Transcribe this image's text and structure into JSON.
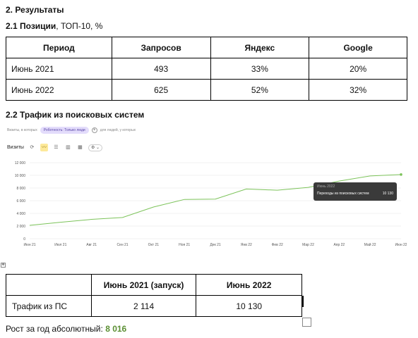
{
  "section_title": "2. Результаты",
  "positions": {
    "heading_bold": "2.1 Позиции",
    "heading_rest": ", ТОП-10, %",
    "headers": [
      "Период",
      "Запросов",
      "Яндекс",
      "Google"
    ],
    "rows": [
      [
        "Июнь 2021",
        "493",
        "33%",
        "20%"
      ],
      [
        "Июнь 2022",
        "625",
        "52%",
        "32%"
      ]
    ]
  },
  "traffic": {
    "heading": "2.2 Трафик из поисковых систем",
    "segment_label": "Визиты, в которых",
    "segment_chip": "Роботность: Только люди",
    "segment_add": "для людей, у которых",
    "metric_label": "Визиты",
    "tooltip": {
      "date": "Июнь 2022",
      "series": "Переходы из поисковых систем",
      "value": "10 130"
    },
    "colors": {
      "line": "#7cc35a",
      "tooltip_bg": "#3a3a3a",
      "chip": "#e3dcfb"
    }
  },
  "chart_data": {
    "type": "line",
    "x": [
      "Июн 21",
      "Июл 21",
      "Авг 21",
      "Сен 21",
      "Окт 21",
      "Ноя 21",
      "Дек 21",
      "Янв 22",
      "Фев 22",
      "Мар 22",
      "Апр 22",
      "Май 22",
      "Июн 22"
    ],
    "series": [
      {
        "values": [
          2114,
          2600,
          3050,
          3350,
          5000,
          6200,
          6250,
          7850,
          7650,
          8100,
          9100,
          9900,
          10130
        ]
      }
    ],
    "yticks": [
      "0",
      "2 000",
      "4 000",
      "6 000",
      "8 000",
      "10 000",
      "12 000"
    ],
    "ylim": [
      0,
      12000
    ],
    "grid": true,
    "title": "",
    "xlabel": "",
    "ylabel": ""
  },
  "summary_table": {
    "headers": [
      "",
      "Июнь 2021 (запуск)",
      "Июнь 2022"
    ],
    "row": [
      "Трафик из ПС",
      "2 114",
      "10 130"
    ]
  },
  "growth": {
    "label": "Рост за год абсолютный:",
    "value": "8 016"
  }
}
